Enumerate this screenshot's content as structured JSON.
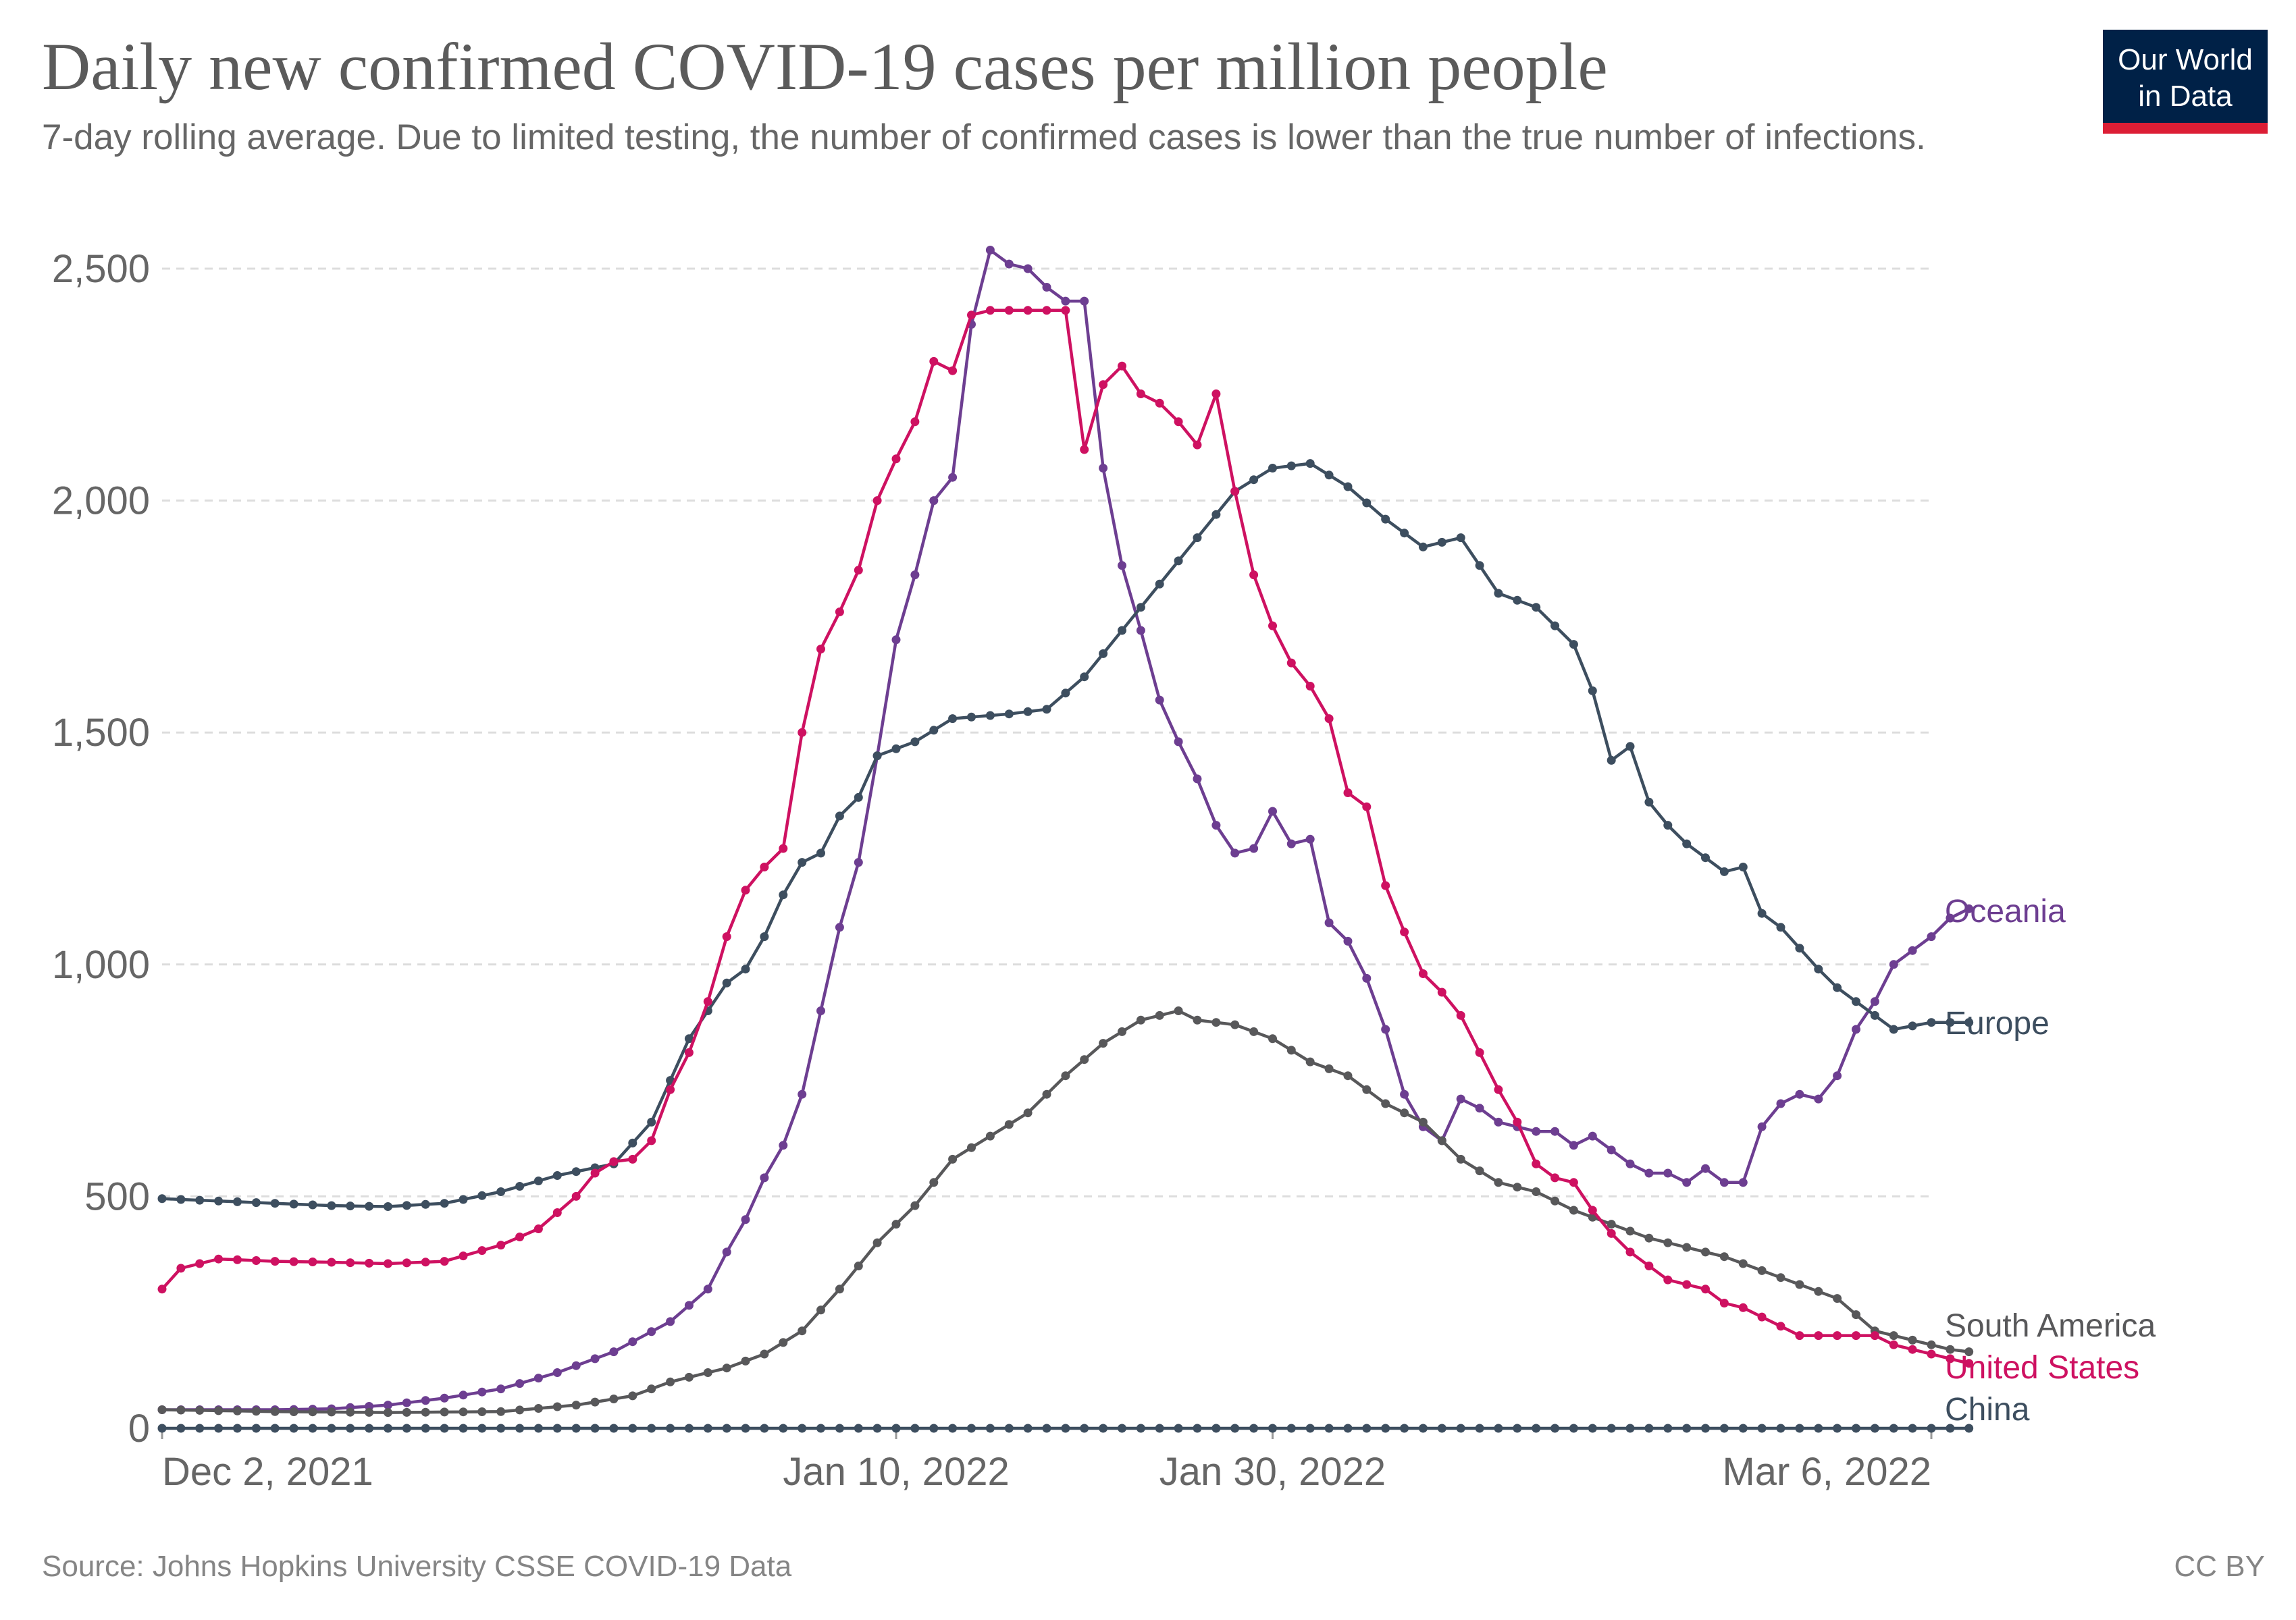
{
  "header": {
    "title": "Daily new confirmed COVID-19 cases per million people",
    "subtitle": "7-day rolling average. Due to limited testing, the number of confirmed cases is lower than the true number of infections."
  },
  "logo": {
    "line1": "Our World",
    "line2": "in Data",
    "bg_color": "#002147",
    "accent_color": "#dc1e35"
  },
  "footer": {
    "source": "Source: Johns Hopkins University CSSE COVID-19 Data",
    "license": "CC BY"
  },
  "chart_data": {
    "type": "line",
    "title": "Daily new confirmed COVID-19 cases per million people",
    "subtitle": "7-day rolling average. Due to limited testing, the number of confirmed cases is lower than the true number of infections.",
    "xlabel": "",
    "ylabel": "",
    "x_range": [
      "2021-12-02",
      "2022-03-06"
    ],
    "ylim": [
      0,
      2500
    ],
    "y_ticks": [
      0,
      500,
      1000,
      1500,
      2000,
      2500
    ],
    "y_tick_labels": [
      "0",
      "500",
      "1,000",
      "1,500",
      "2,000",
      "2,500"
    ],
    "x_ticks": [
      "2021-12-02",
      "2022-01-10",
      "2022-01-30",
      "2022-03-06"
    ],
    "x_tick_labels": [
      "Dec 2, 2021",
      "Jan 10, 2022",
      "Jan 30, 2022",
      "Mar 6, 2022"
    ],
    "grid": "horizontal dashed",
    "legend": "line-end labels",
    "series": [
      {
        "name": "Oceania",
        "color": "#6d3e91",
        "values": [
          [
            "2021-12-02",
            40
          ],
          [
            "2021-12-05",
            40
          ],
          [
            "2021-12-08",
            40
          ],
          [
            "2021-12-11",
            42
          ],
          [
            "2021-12-14",
            50
          ],
          [
            "2021-12-17",
            65
          ],
          [
            "2021-12-20",
            85
          ],
          [
            "2021-12-23",
            120
          ],
          [
            "2021-12-26",
            165
          ],
          [
            "2021-12-29",
            230
          ],
          [
            "2021-12-31",
            300
          ],
          [
            "2022-01-01",
            380
          ],
          [
            "2022-01-02",
            450
          ],
          [
            "2022-01-03",
            540
          ],
          [
            "2022-01-04",
            610
          ],
          [
            "2022-01-05",
            720
          ],
          [
            "2022-01-06",
            900
          ],
          [
            "2022-01-07",
            1080
          ],
          [
            "2022-01-08",
            1220
          ],
          [
            "2022-01-09",
            1450
          ],
          [
            "2022-01-10",
            1700
          ],
          [
            "2022-01-11",
            1840
          ],
          [
            "2022-01-12",
            2000
          ],
          [
            "2022-01-13",
            2050
          ],
          [
            "2022-01-14",
            2380
          ],
          [
            "2022-01-15",
            2540
          ],
          [
            "2022-01-16",
            2510
          ],
          [
            "2022-01-17",
            2500
          ],
          [
            "2022-01-18",
            2460
          ],
          [
            "2022-01-19",
            2430
          ],
          [
            "2022-01-20",
            2430
          ],
          [
            "2022-01-21",
            2070
          ],
          [
            "2022-01-22",
            1860
          ],
          [
            "2022-01-23",
            1720
          ],
          [
            "2022-01-24",
            1570
          ],
          [
            "2022-01-25",
            1480
          ],
          [
            "2022-01-26",
            1400
          ],
          [
            "2022-01-27",
            1300
          ],
          [
            "2022-01-28",
            1240
          ],
          [
            "2022-01-29",
            1250
          ],
          [
            "2022-01-30",
            1330
          ],
          [
            "2022-01-31",
            1260
          ],
          [
            "2022-02-01",
            1270
          ],
          [
            "2022-02-02",
            1090
          ],
          [
            "2022-02-03",
            1050
          ],
          [
            "2022-02-04",
            970
          ],
          [
            "2022-02-05",
            860
          ],
          [
            "2022-02-06",
            720
          ],
          [
            "2022-02-07",
            650
          ],
          [
            "2022-02-08",
            620
          ],
          [
            "2022-02-09",
            710
          ],
          [
            "2022-02-10",
            690
          ],
          [
            "2022-02-11",
            660
          ],
          [
            "2022-02-12",
            650
          ],
          [
            "2022-02-13",
            640
          ],
          [
            "2022-02-14",
            640
          ],
          [
            "2022-02-15",
            610
          ],
          [
            "2022-02-16",
            630
          ],
          [
            "2022-02-17",
            600
          ],
          [
            "2022-02-18",
            570
          ],
          [
            "2022-02-19",
            550
          ],
          [
            "2022-02-20",
            550
          ],
          [
            "2022-02-21",
            530
          ],
          [
            "2022-02-22",
            560
          ],
          [
            "2022-02-23",
            530
          ],
          [
            "2022-02-24",
            530
          ],
          [
            "2022-02-25",
            650
          ],
          [
            "2022-02-26",
            700
          ],
          [
            "2022-02-27",
            720
          ],
          [
            "2022-02-28",
            710
          ],
          [
            "2022-03-01",
            760
          ],
          [
            "2022-03-02",
            860
          ],
          [
            "2022-03-03",
            920
          ],
          [
            "2022-03-04",
            1000
          ],
          [
            "2022-03-05",
            1030
          ],
          [
            "2022-03-06",
            1060
          ],
          [
            "2022-03-07",
            1100
          ],
          [
            "2022-03-08",
            1120
          ]
        ]
      },
      {
        "name": "Europe",
        "color": "#3d4e5f",
        "values": [
          [
            "2021-12-02",
            495
          ],
          [
            "2021-12-05",
            490
          ],
          [
            "2021-12-08",
            485
          ],
          [
            "2021-12-11",
            480
          ],
          [
            "2021-12-14",
            478
          ],
          [
            "2021-12-17",
            485
          ],
          [
            "2021-12-20",
            510
          ],
          [
            "2021-12-23",
            545
          ],
          [
            "2021-12-26",
            570
          ],
          [
            "2021-12-28",
            660
          ],
          [
            "2021-12-30",
            840
          ],
          [
            "2022-01-01",
            960
          ],
          [
            "2022-01-02",
            990
          ],
          [
            "2022-01-03",
            1060
          ],
          [
            "2022-01-04",
            1150
          ],
          [
            "2022-01-05",
            1220
          ],
          [
            "2022-01-06",
            1240
          ],
          [
            "2022-01-07",
            1320
          ],
          [
            "2022-01-08",
            1360
          ],
          [
            "2022-01-09",
            1450
          ],
          [
            "2022-01-11",
            1480
          ],
          [
            "2022-01-13",
            1530
          ],
          [
            "2022-01-16",
            1540
          ],
          [
            "2022-01-18",
            1550
          ],
          [
            "2022-01-20",
            1620
          ],
          [
            "2022-01-22",
            1720
          ],
          [
            "2022-01-24",
            1820
          ],
          [
            "2022-01-26",
            1920
          ],
          [
            "2022-01-28",
            2020
          ],
          [
            "2022-01-30",
            2070
          ],
          [
            "2022-02-01",
            2080
          ],
          [
            "2022-02-03",
            2030
          ],
          [
            "2022-02-05",
            1960
          ],
          [
            "2022-02-07",
            1900
          ],
          [
            "2022-02-09",
            1920
          ],
          [
            "2022-02-11",
            1800
          ],
          [
            "2022-02-13",
            1770
          ],
          [
            "2022-02-15",
            1690
          ],
          [
            "2022-02-16",
            1590
          ],
          [
            "2022-02-17",
            1440
          ],
          [
            "2022-02-18",
            1470
          ],
          [
            "2022-02-19",
            1350
          ],
          [
            "2022-02-20",
            1300
          ],
          [
            "2022-02-21",
            1260
          ],
          [
            "2022-02-22",
            1230
          ],
          [
            "2022-02-23",
            1200
          ],
          [
            "2022-02-24",
            1210
          ],
          [
            "2022-02-25",
            1110
          ],
          [
            "2022-02-26",
            1080
          ],
          [
            "2022-02-28",
            990
          ],
          [
            "2022-03-01",
            950
          ],
          [
            "2022-03-02",
            920
          ],
          [
            "2022-03-04",
            860
          ],
          [
            "2022-03-06",
            875
          ],
          [
            "2022-03-08",
            875
          ]
        ]
      },
      {
        "name": "South America",
        "color": "#58585a",
        "values": [
          [
            "2021-12-02",
            40
          ],
          [
            "2021-12-08",
            36
          ],
          [
            "2021-12-14",
            34
          ],
          [
            "2021-12-20",
            36
          ],
          [
            "2021-12-24",
            50
          ],
          [
            "2021-12-27",
            70
          ],
          [
            "2021-12-29",
            100
          ],
          [
            "2022-01-01",
            130
          ],
          [
            "2022-01-03",
            160
          ],
          [
            "2022-01-05",
            210
          ],
          [
            "2022-01-07",
            300
          ],
          [
            "2022-01-09",
            400
          ],
          [
            "2022-01-11",
            480
          ],
          [
            "2022-01-13",
            580
          ],
          [
            "2022-01-15",
            630
          ],
          [
            "2022-01-17",
            680
          ],
          [
            "2022-01-19",
            760
          ],
          [
            "2022-01-21",
            830
          ],
          [
            "2022-01-23",
            880
          ],
          [
            "2022-01-25",
            900
          ],
          [
            "2022-01-26",
            880
          ],
          [
            "2022-01-28",
            870
          ],
          [
            "2022-01-30",
            840
          ],
          [
            "2022-02-01",
            790
          ],
          [
            "2022-02-03",
            760
          ],
          [
            "2022-02-05",
            700
          ],
          [
            "2022-02-07",
            660
          ],
          [
            "2022-02-09",
            580
          ],
          [
            "2022-02-11",
            530
          ],
          [
            "2022-02-13",
            510
          ],
          [
            "2022-02-15",
            470
          ],
          [
            "2022-02-17",
            440
          ],
          [
            "2022-02-19",
            410
          ],
          [
            "2022-02-21",
            390
          ],
          [
            "2022-02-23",
            370
          ],
          [
            "2022-02-25",
            340
          ],
          [
            "2022-02-27",
            310
          ],
          [
            "2022-03-01",
            280
          ],
          [
            "2022-03-03",
            210
          ],
          [
            "2022-03-05",
            190
          ],
          [
            "2022-03-07",
            170
          ],
          [
            "2022-03-08",
            165
          ]
        ]
      },
      {
        "name": "United States",
        "color": "#ce1161",
        "values": [
          [
            "2021-12-02",
            300
          ],
          [
            "2021-12-03",
            345
          ],
          [
            "2021-12-05",
            365
          ],
          [
            "2021-12-08",
            360
          ],
          [
            "2021-12-11",
            358
          ],
          [
            "2021-12-14",
            355
          ],
          [
            "2021-12-17",
            360
          ],
          [
            "2021-12-20",
            395
          ],
          [
            "2021-12-22",
            430
          ],
          [
            "2021-12-24",
            500
          ],
          [
            "2021-12-25",
            550
          ],
          [
            "2021-12-26",
            575
          ],
          [
            "2021-12-27",
            580
          ],
          [
            "2021-12-28",
            620
          ],
          [
            "2021-12-29",
            730
          ],
          [
            "2021-12-30",
            810
          ],
          [
            "2021-12-31",
            920
          ],
          [
            "2022-01-01",
            1060
          ],
          [
            "2022-01-02",
            1160
          ],
          [
            "2022-01-03",
            1210
          ],
          [
            "2022-01-04",
            1250
          ],
          [
            "2022-01-05",
            1500
          ],
          [
            "2022-01-06",
            1680
          ],
          [
            "2022-01-07",
            1760
          ],
          [
            "2022-01-08",
            1850
          ],
          [
            "2022-01-09",
            2000
          ],
          [
            "2022-01-10",
            2090
          ],
          [
            "2022-01-11",
            2170
          ],
          [
            "2022-01-12",
            2300
          ],
          [
            "2022-01-13",
            2280
          ],
          [
            "2022-01-14",
            2400
          ],
          [
            "2022-01-15",
            2410
          ],
          [
            "2022-01-17",
            2410
          ],
          [
            "2022-01-19",
            2410
          ],
          [
            "2022-01-20",
            2110
          ],
          [
            "2022-01-21",
            2250
          ],
          [
            "2022-01-22",
            2290
          ],
          [
            "2022-01-23",
            2230
          ],
          [
            "2022-01-24",
            2210
          ],
          [
            "2022-01-25",
            2170
          ],
          [
            "2022-01-26",
            2120
          ],
          [
            "2022-01-27",
            2230
          ],
          [
            "2022-01-28",
            2020
          ],
          [
            "2022-01-29",
            1840
          ],
          [
            "2022-01-30",
            1730
          ],
          [
            "2022-01-31",
            1650
          ],
          [
            "2022-02-01",
            1600
          ],
          [
            "2022-02-02",
            1530
          ],
          [
            "2022-02-03",
            1370
          ],
          [
            "2022-02-04",
            1340
          ],
          [
            "2022-02-05",
            1170
          ],
          [
            "2022-02-06",
            1070
          ],
          [
            "2022-02-07",
            980
          ],
          [
            "2022-02-08",
            940
          ],
          [
            "2022-02-09",
            890
          ],
          [
            "2022-02-10",
            810
          ],
          [
            "2022-02-11",
            730
          ],
          [
            "2022-02-12",
            660
          ],
          [
            "2022-02-13",
            570
          ],
          [
            "2022-02-14",
            540
          ],
          [
            "2022-02-15",
            530
          ],
          [
            "2022-02-16",
            470
          ],
          [
            "2022-02-17",
            420
          ],
          [
            "2022-02-18",
            380
          ],
          [
            "2022-02-19",
            350
          ],
          [
            "2022-02-20",
            320
          ],
          [
            "2022-02-21",
            310
          ],
          [
            "2022-02-22",
            300
          ],
          [
            "2022-02-23",
            270
          ],
          [
            "2022-02-24",
            260
          ],
          [
            "2022-02-25",
            240
          ],
          [
            "2022-02-27",
            200
          ],
          [
            "2022-03-01",
            200
          ],
          [
            "2022-03-03",
            200
          ],
          [
            "2022-03-04",
            180
          ],
          [
            "2022-03-05",
            170
          ],
          [
            "2022-03-07",
            150
          ],
          [
            "2022-03-08",
            140
          ]
        ]
      },
      {
        "name": "China",
        "color": "#3d4e5f",
        "values": [
          [
            "2021-12-02",
            0
          ],
          [
            "2021-12-20",
            0
          ],
          [
            "2022-01-10",
            0
          ],
          [
            "2022-01-30",
            0
          ],
          [
            "2022-02-20",
            0
          ],
          [
            "2022-03-08",
            0
          ]
        ]
      }
    ]
  }
}
